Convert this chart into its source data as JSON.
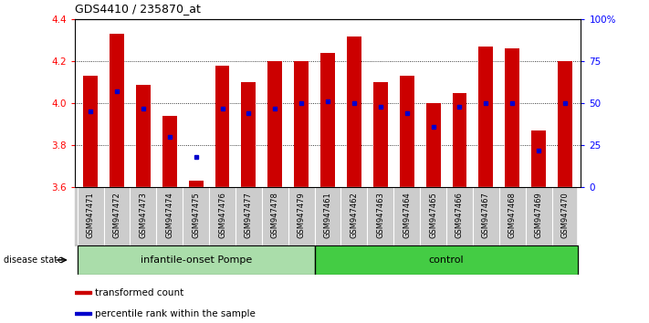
{
  "title": "GDS4410 / 235870_at",
  "samples": [
    "GSM947471",
    "GSM947472",
    "GSM947473",
    "GSM947474",
    "GSM947475",
    "GSM947476",
    "GSM947477",
    "GSM947478",
    "GSM947479",
    "GSM947461",
    "GSM947462",
    "GSM947463",
    "GSM947464",
    "GSM947465",
    "GSM947466",
    "GSM947467",
    "GSM947468",
    "GSM947469",
    "GSM947470"
  ],
  "transformed_counts": [
    4.13,
    4.33,
    4.09,
    3.94,
    3.63,
    4.18,
    4.1,
    4.2,
    4.2,
    4.24,
    4.32,
    4.1,
    4.13,
    4.0,
    4.05,
    4.27,
    4.26,
    3.87,
    4.2
  ],
  "percentile_ranks": [
    45,
    57,
    47,
    30,
    18,
    47,
    44,
    47,
    50,
    51,
    50,
    48,
    44,
    36,
    48,
    50,
    50,
    22,
    50
  ],
  "group_labels": [
    "infantile-onset Pompe",
    "control"
  ],
  "group_split": 9,
  "ylim_left": [
    3.6,
    4.4
  ],
  "ylim_right": [
    0,
    100
  ],
  "yticks_left": [
    3.6,
    3.8,
    4.0,
    4.2,
    4.4
  ],
  "yticks_right": [
    0,
    25,
    50,
    75,
    100
  ],
  "bar_color": "#cc0000",
  "dot_color": "#0000cc",
  "bar_bottom": 3.6,
  "bar_width": 0.55,
  "group1_color": "#aaddaa",
  "group2_color": "#44cc44",
  "tick_label_area_color": "#cccccc",
  "legend_square_red": "#cc0000",
  "legend_square_blue": "#0000cc",
  "legend_text_red": "transformed count",
  "legend_text_blue": "percentile rank within the sample",
  "disease_state_label": "disease state"
}
